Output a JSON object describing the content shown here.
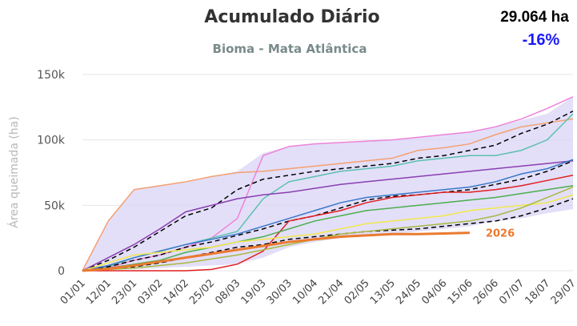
{
  "chart_data": {
    "type": "line",
    "title": "Acumulado Diário",
    "subtitle": "Bioma - Mata Atlântica",
    "annotations": [
      "29.064 ha",
      "-16%"
    ],
    "ylabel": "Área queimada (ha)",
    "categories": [
      "01/01",
      "12/01",
      "23/01",
      "03/02",
      "14/02",
      "25/02",
      "08/03",
      "19/03",
      "30/03",
      "10/04",
      "21/04",
      "02/05",
      "13/05",
      "24/05",
      "04/06",
      "15/06",
      "26/06",
      "07/07",
      "18/07",
      "29/07"
    ],
    "ylim": [
      0,
      150000
    ],
    "yticks": [
      0,
      {
        "value": 50000,
        "label": "50k"
      },
      {
        "value": 100000,
        "label": "100k"
      },
      {
        "value": 150000,
        "label": "150k"
      }
    ],
    "grid": true,
    "envelope": {
      "color": "#d9d4f7",
      "upper": [
        0,
        38000,
        62000,
        65000,
        68000,
        72000,
        76000,
        90000,
        95000,
        97000,
        98000,
        99000,
        100000,
        102000,
        104000,
        106000,
        110000,
        115000,
        120000,
        133000
      ],
      "lower": [
        0,
        500,
        1000,
        2000,
        3000,
        4000,
        5000,
        10000,
        18000,
        22000,
        25000,
        27000,
        28000,
        30000,
        32000,
        34000,
        38000,
        40000,
        44000,
        47000
      ]
    },
    "series": [
      {
        "color": "#f4a070",
        "values": [
          0,
          38000,
          62000,
          65000,
          68000,
          72000,
          75000,
          76000,
          78000,
          80000,
          82000,
          84000,
          86000,
          92000,
          94000,
          97000,
          104000,
          110000,
          113000,
          116000
        ]
      },
      {
        "color": "#ee82d8",
        "values": [
          0,
          2000,
          8000,
          12000,
          18000,
          25000,
          40000,
          88000,
          95000,
          97000,
          98000,
          99000,
          100000,
          102000,
          104000,
          106000,
          110000,
          116000,
          124000,
          133000
        ]
      },
      {
        "color": "#5cc0b0",
        "values": [
          0,
          3000,
          10000,
          15000,
          20000,
          25000,
          30000,
          55000,
          68000,
          72000,
          76000,
          78000,
          80000,
          84000,
          86000,
          88000,
          88000,
          92000,
          100000,
          120000
        ]
      },
      {
        "color": "#000000",
        "dash": true,
        "values": [
          0,
          8000,
          18000,
          30000,
          42000,
          48000,
          62000,
          70000,
          73000,
          76000,
          78000,
          80000,
          82000,
          86000,
          88000,
          92000,
          96000,
          105000,
          112000,
          122000
        ]
      },
      {
        "color": "#8a3fb0",
        "values": [
          0,
          10000,
          20000,
          32000,
          45000,
          50000,
          55000,
          58000,
          60000,
          63000,
          66000,
          68000,
          70000,
          72000,
          74000,
          76000,
          78000,
          80000,
          82000,
          84000
        ]
      },
      {
        "color": "#000000",
        "dash": true,
        "values": [
          0,
          3000,
          8000,
          12000,
          18000,
          22000,
          27000,
          32000,
          38000,
          42000,
          48000,
          54000,
          57000,
          58000,
          60000,
          62000,
          66000,
          70000,
          76000,
          84000
        ]
      },
      {
        "color": "#3a78c8",
        "values": [
          0,
          4000,
          10000,
          15000,
          20000,
          24000,
          28000,
          34000,
          40000,
          46000,
          52000,
          56000,
          58000,
          60000,
          62000,
          64000,
          68000,
          74000,
          78000,
          85000
        ]
      },
      {
        "color": "#e02020",
        "values": [
          0,
          0,
          0,
          0,
          0,
          1000,
          5000,
          15000,
          38000,
          42000,
          46000,
          52000,
          56000,
          58000,
          60000,
          60000,
          62000,
          65000,
          69000,
          73000
        ]
      },
      {
        "color": "#4cae4c",
        "values": [
          0,
          2000,
          5000,
          8000,
          14000,
          18000,
          22000,
          26000,
          32000,
          38000,
          42000,
          46000,
          48000,
          50000,
          52000,
          54000,
          56000,
          59000,
          62000,
          65000
        ]
      },
      {
        "color": "#f2e84a",
        "values": [
          0,
          6000,
          12000,
          14000,
          16000,
          18000,
          22000,
          24000,
          26000,
          28000,
          32000,
          36000,
          38000,
          40000,
          42000,
          46000,
          48000,
          50000,
          52000,
          58000
        ]
      },
      {
        "color": "#000000",
        "dash": true,
        "values": [
          0,
          1000,
          3000,
          6000,
          10000,
          14000,
          18000,
          20000,
          24000,
          26000,
          28000,
          30000,
          31000,
          32000,
          34000,
          36000,
          38000,
          42000,
          48000,
          55000
        ]
      },
      {
        "color": "#a8b840",
        "values": [
          0,
          1000,
          2000,
          4000,
          6000,
          9000,
          12000,
          16000,
          20000,
          24000,
          28000,
          30000,
          32000,
          34000,
          36000,
          38000,
          42000,
          48000,
          56000,
          64000
        ]
      },
      {
        "name": "2026",
        "color": "#ea7a30",
        "width": 3,
        "values": [
          0,
          1500,
          4000,
          7000,
          10000,
          13000,
          16000,
          19000,
          22000,
          24000,
          26000,
          27000,
          28000,
          28000,
          28500,
          29000,
          null,
          null,
          null,
          null
        ]
      }
    ]
  }
}
